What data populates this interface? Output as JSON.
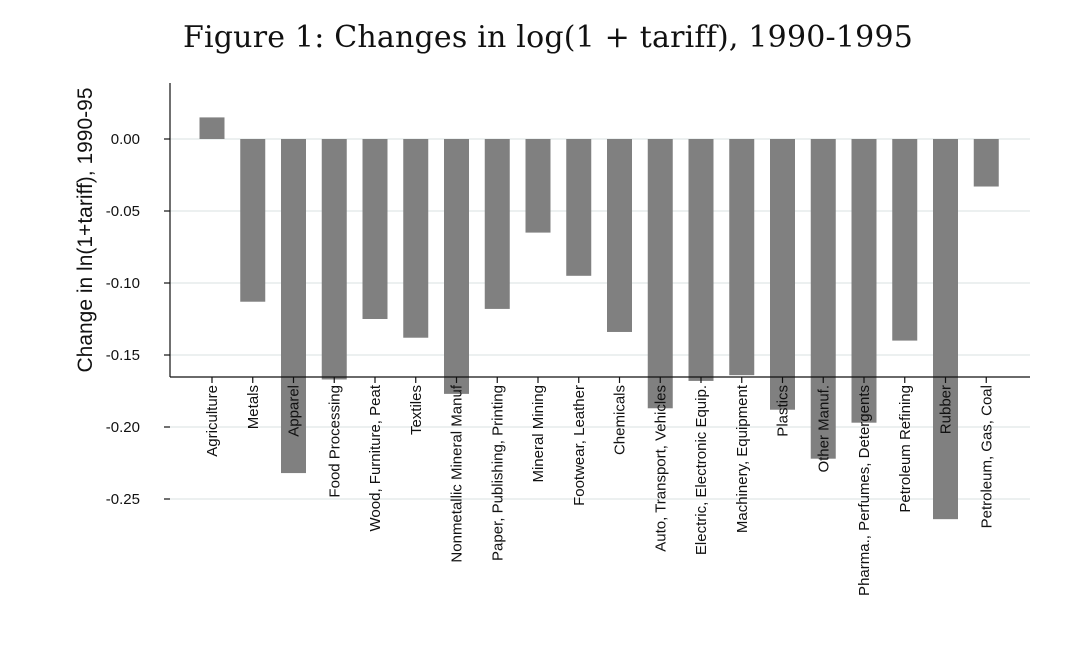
{
  "chart_data": {
    "type": "bar",
    "title": "Figure 1: Changes in log(1 + tariff), 1990-1995",
    "xlabel": "",
    "ylabel": "Change in ln(1+tariff), 1990-95",
    "ylim": [
      -0.33,
      0.08
    ],
    "yticks": [
      "0.00",
      "-0.05",
      "-0.10",
      "-0.15",
      "-0.20",
      "-0.25"
    ],
    "ytick_values": [
      0,
      -0.05,
      -0.1,
      -0.15,
      -0.2,
      -0.25
    ],
    "grid": true,
    "bar_color": "#808080",
    "grid_color": "#e6ebeb",
    "categories": [
      "Agriculture",
      "Metals",
      "Apparel",
      "Food Processing",
      "Wood, Furniture, Peat",
      "Textiles",
      "Nonmetallic Mineral Manuf",
      "Paper, Publishing, Printing",
      "Mineral Mining",
      "Footwear, Leather",
      "Chemicals",
      "Auto, Transport, Vehicles",
      "Electric, Electronic Equip.",
      "Machinery, Equipment",
      "Plastics",
      "Other Manuf.",
      "Pharma., Perfumes, Detergents",
      "Petroleum Refining",
      "Rubber",
      "Petroleum, Gas, Coal"
    ],
    "values": [
      0.015,
      -0.113,
      -0.232,
      -0.167,
      -0.125,
      -0.138,
      -0.177,
      -0.118,
      -0.065,
      -0.095,
      -0.134,
      -0.187,
      -0.168,
      -0.164,
      -0.188,
      -0.222,
      -0.197,
      -0.14,
      -0.264,
      -0.033
    ]
  }
}
